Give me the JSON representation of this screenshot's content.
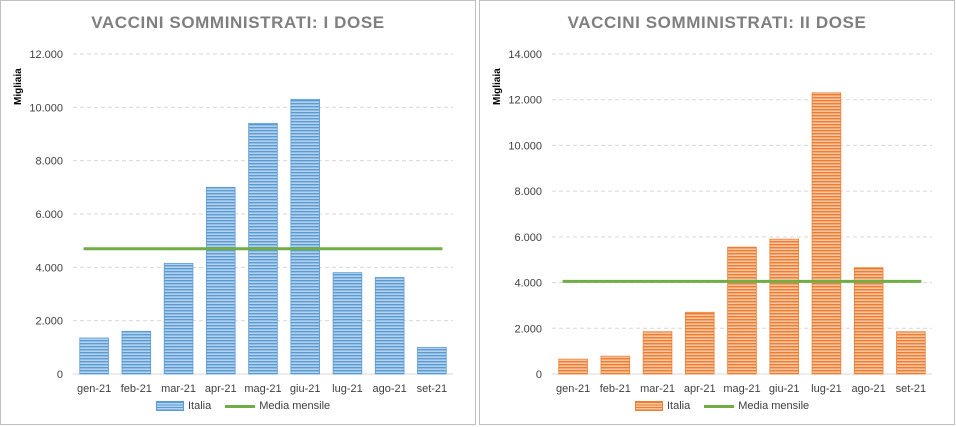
{
  "chart_data": [
    {
      "type": "bar",
      "title": "VACCINI SOMMINISTRATI: I DOSE",
      "ylabel": "Migliaia",
      "categories": [
        "gen-21",
        "feb-21",
        "mar-21",
        "apr-21",
        "mag-21",
        "giu-21",
        "lug-21",
        "ago-21",
        "set-21"
      ],
      "series": [
        {
          "name": "Italia",
          "type": "bar",
          "color": "#5b9bd5",
          "values": [
            1350,
            1600,
            4150,
            7000,
            9400,
            10300,
            3800,
            3620,
            1000
          ]
        },
        {
          "name": "Media mensile",
          "type": "line",
          "color": "#70ad47",
          "values": [
            4700,
            4700,
            4700,
            4700,
            4700,
            4700,
            4700,
            4700,
            4700
          ]
        }
      ],
      "ylim": [
        0,
        12000
      ],
      "yticks": [
        "0",
        "2.000",
        "4.000",
        "6.000",
        "8.000",
        "10.000",
        "12.000"
      ],
      "grid": true,
      "legend_position": "bottom"
    },
    {
      "type": "bar",
      "title": "VACCINI SOMMINISTRATI: II DOSE",
      "ylabel": "Migliaia",
      "categories": [
        "gen-21",
        "feb-21",
        "mar-21",
        "apr-21",
        "mag-21",
        "giu-21",
        "lug-21",
        "ago-21",
        "set-21"
      ],
      "series": [
        {
          "name": "Italia",
          "type": "bar",
          "color": "#ed7d31",
          "values": [
            650,
            780,
            1850,
            2700,
            5550,
            5900,
            12300,
            4650,
            1850
          ]
        },
        {
          "name": "Media mensile",
          "type": "line",
          "color": "#70ad47",
          "values": [
            4050,
            4050,
            4050,
            4050,
            4050,
            4050,
            4050,
            4050,
            4050
          ]
        }
      ],
      "ylim": [
        0,
        14000
      ],
      "yticks": [
        "0",
        "2.000",
        "4.000",
        "6.000",
        "8.000",
        "10.000",
        "12.000",
        "14.000"
      ],
      "grid": true,
      "legend_position": "bottom"
    }
  ]
}
